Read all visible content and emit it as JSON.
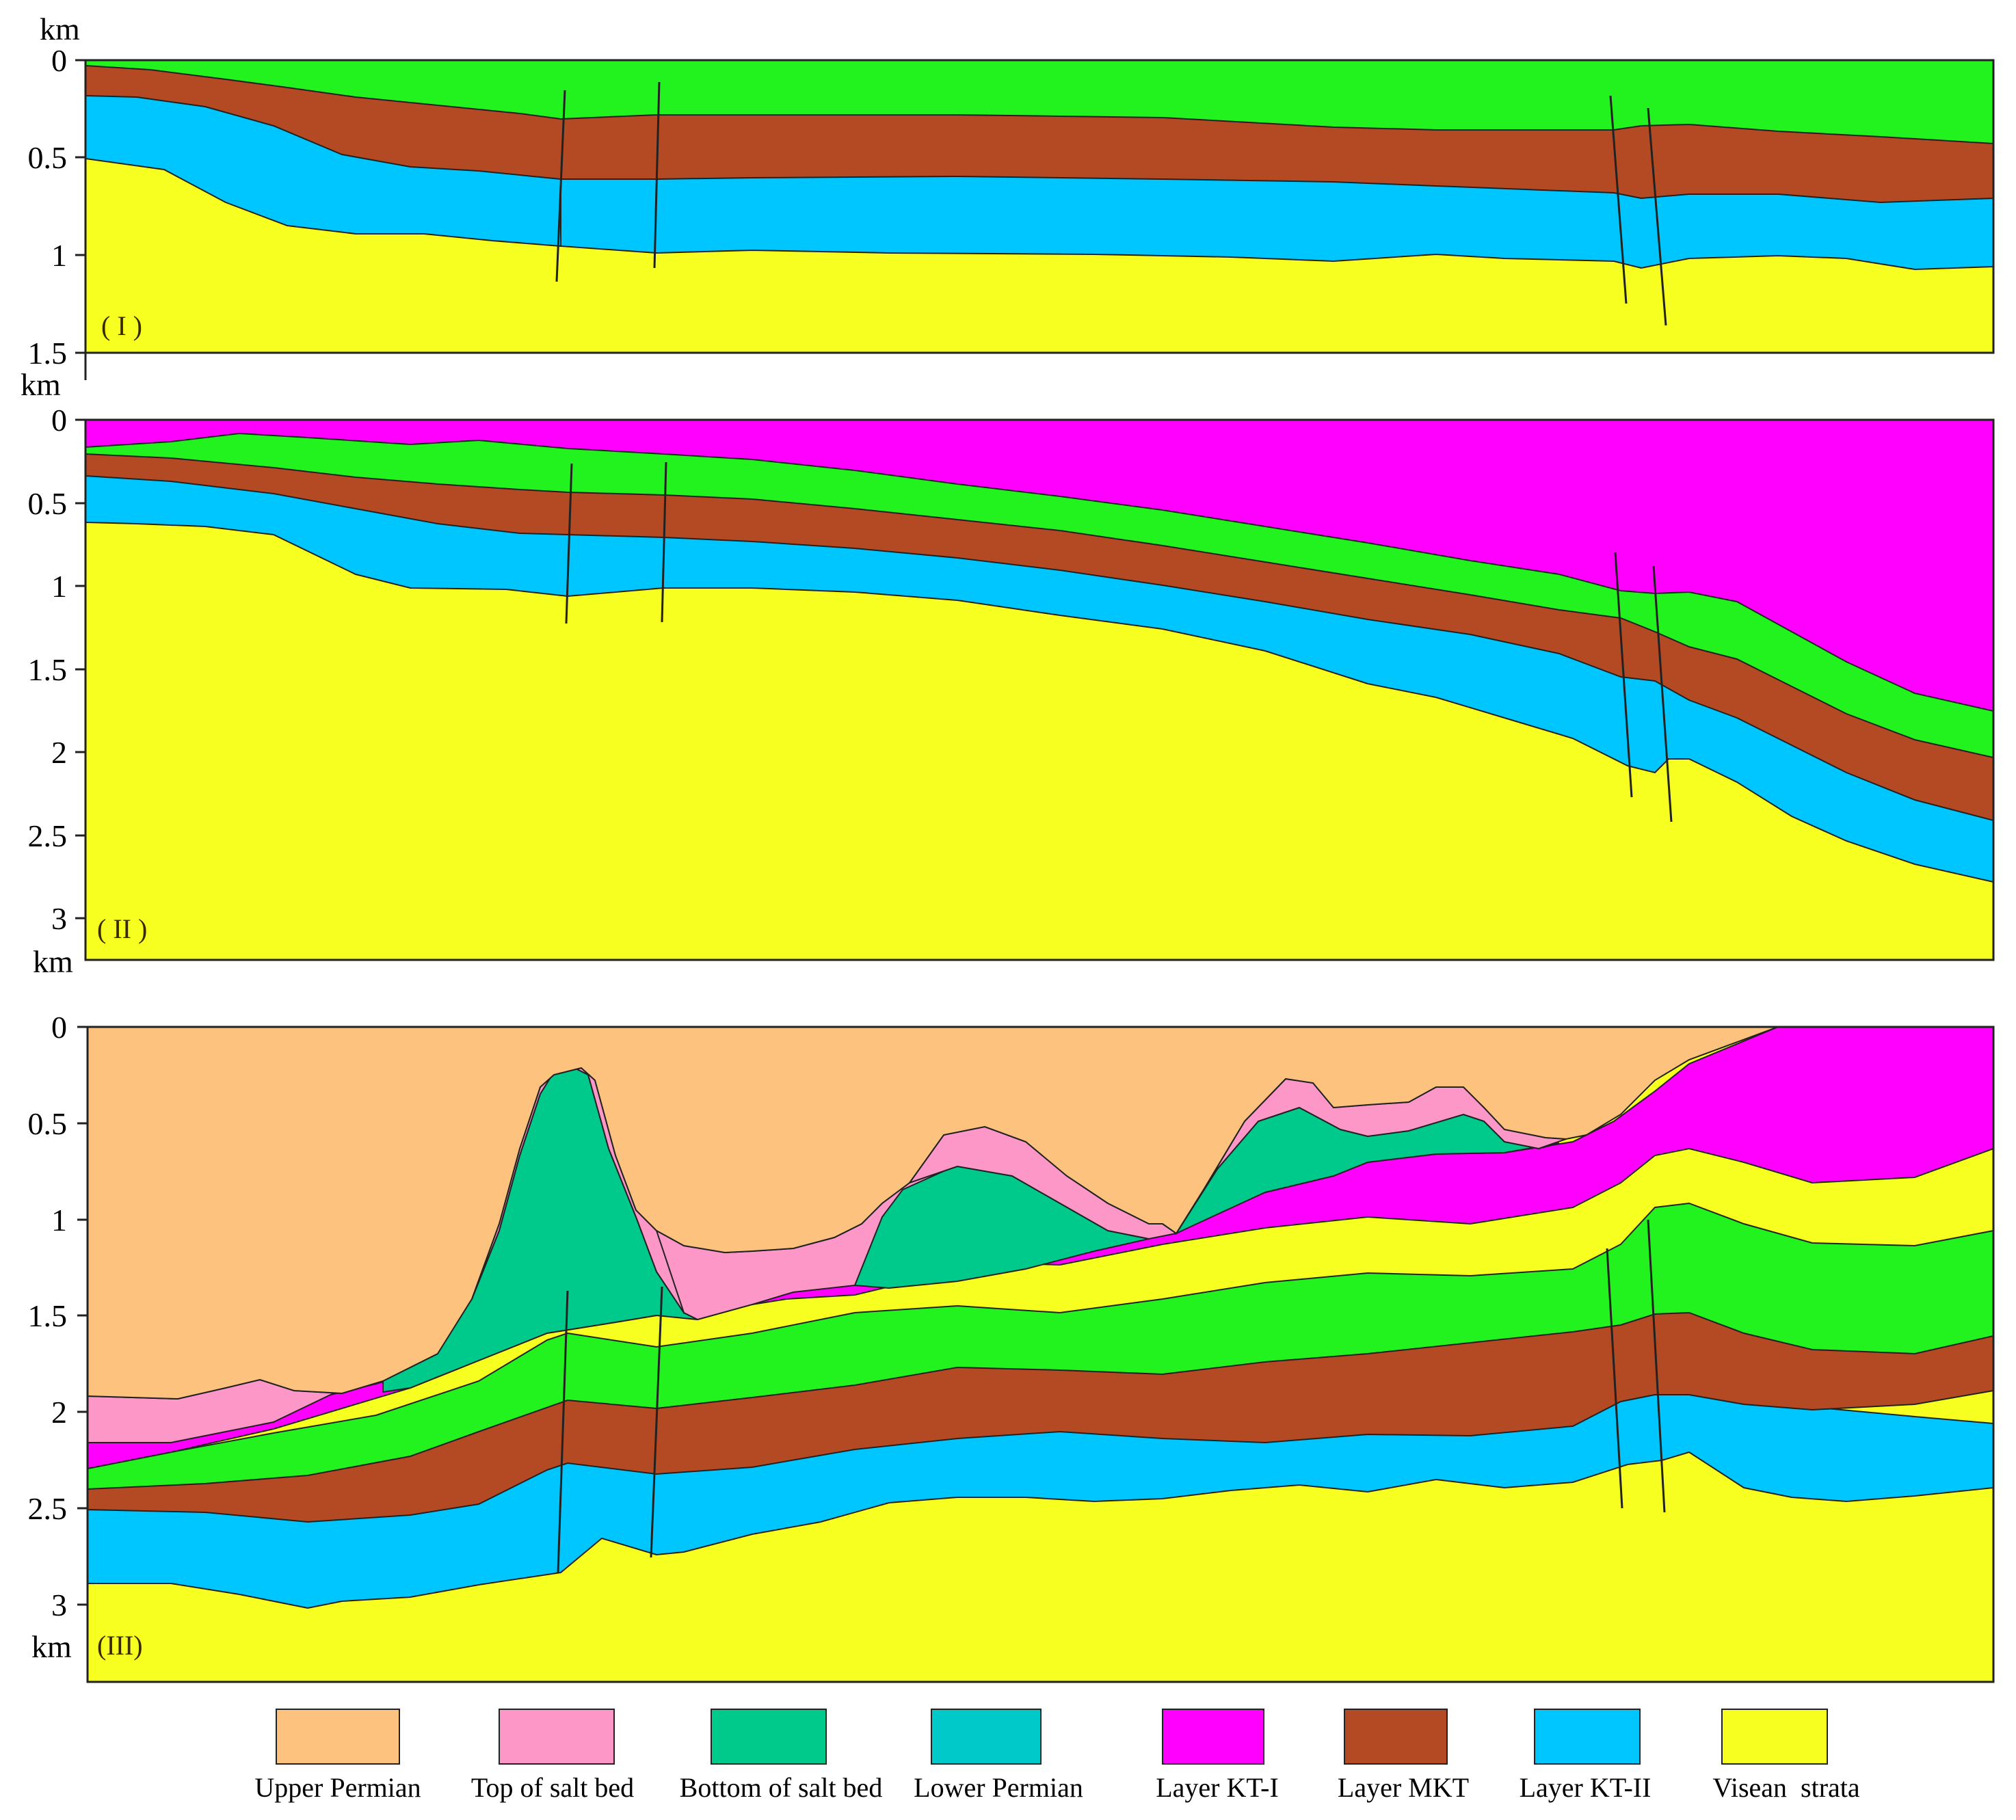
{
  "figure": {
    "panels": [
      {
        "label": "( I )",
        "unit": "km",
        "ticks": [
          "0",
          "0.5",
          "1",
          "1.5"
        ],
        "max_depth_km": 1.5
      },
      {
        "label": "( II )",
        "unit": "km",
        "ticks": [
          "0",
          "0.5",
          "1",
          "1.5",
          "2",
          "2.5",
          "3"
        ],
        "max_depth_km": 3.25
      },
      {
        "label": "(III)",
        "unit": "km",
        "ticks": [
          "0",
          "0.5",
          "1",
          "1.5",
          "2",
          "2.5",
          "3"
        ],
        "max_depth_km": 3.4
      }
    ],
    "bottom_unit": "km",
    "legend": [
      {
        "label": "Upper Permian",
        "color": "#FCC27E"
      },
      {
        "label": "Top of salt bed",
        "color": "#FD97C8"
      },
      {
        "label": "Bottom of salt bed",
        "color": "#00C98C"
      },
      {
        "label": "Lower Permian",
        "color": "#00C9C9"
      },
      {
        "label": "Layer KT-I",
        "color": "#FF00FF"
      },
      {
        "label": "Layer MKT",
        "color": "#B34A24"
      },
      {
        "label": "Layer KT-II",
        "color": "#00C6FF"
      },
      {
        "label": "Visean  strata",
        "color": "#F6FF1F"
      }
    ],
    "layer_colors": {
      "green": "#22F31E",
      "mkt": "#B34A24",
      "kt2": "#00C6FF",
      "visean": "#F6FF1F",
      "kt1": "#FF00FF",
      "upper_permian": "#FCC27E",
      "top_salt": "#FD97C8",
      "bottom_salt": "#00C98C"
    }
  }
}
